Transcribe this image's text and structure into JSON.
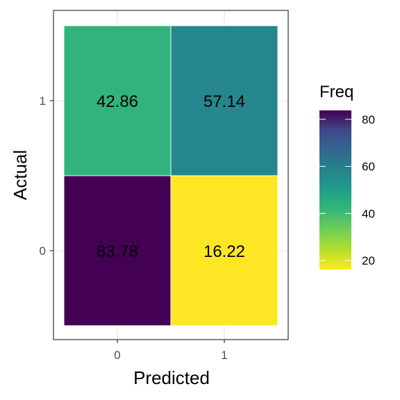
{
  "chart_data": {
    "type": "heatmap",
    "xlabel": "Predicted",
    "ylabel": "Actual",
    "x_categories": [
      "0",
      "1"
    ],
    "y_categories": [
      "0",
      "1"
    ],
    "cells": [
      {
        "x": "0",
        "y": "1",
        "value": 42.86,
        "label": "42.86"
      },
      {
        "x": "1",
        "y": "1",
        "value": 57.14,
        "label": "57.14"
      },
      {
        "x": "0",
        "y": "0",
        "value": 83.78,
        "label": "83.78"
      },
      {
        "x": "1",
        "y": "0",
        "value": 16.22,
        "label": "16.22"
      }
    ],
    "legend": {
      "title": "Freq",
      "ticks": [
        "20",
        "40",
        "60",
        "80"
      ],
      "range": [
        16.22,
        83.78
      ],
      "colorscale": "viridis (reversed: high = dark purple, low = yellow)"
    },
    "grid": true
  }
}
